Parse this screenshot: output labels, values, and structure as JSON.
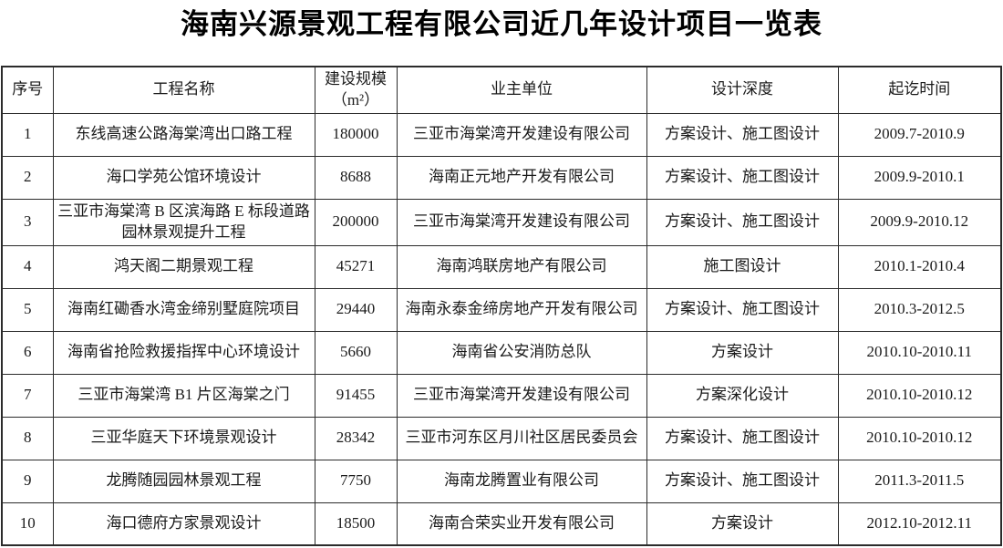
{
  "page": {
    "title": "海南兴源景观工程有限公司近几年设计项目一览表"
  },
  "colors": {
    "background": "#ffffff",
    "text": "#1a1a1a",
    "border": "#2b2b2b"
  },
  "table": {
    "headers": [
      "序号",
      "工程名称",
      "建设规模\n（m²）",
      "业主单位",
      "设计深度",
      "起讫时间"
    ],
    "rows": [
      [
        "1",
        "东线高速公路海棠湾出口路工程",
        "180000",
        "三亚市海棠湾开发建设有限公司",
        "方案设计、施工图设计",
        "2009.7-2010.9"
      ],
      [
        "2",
        "海口学苑公馆环境设计",
        "8688",
        "海南正元地产开发有限公司",
        "方案设计、施工图设计",
        "2009.9-2010.1"
      ],
      [
        "3",
        "三亚市海棠湾 B 区滨海路 E 标段道路园林景观提升工程",
        "200000",
        "三亚市海棠湾开发建设有限公司",
        "方案设计、施工图设计",
        "2009.9-2010.12"
      ],
      [
        "4",
        "鸿天阁二期景观工程",
        "45271",
        "海南鸿联房地产有限公司",
        "施工图设计",
        "2010.1-2010.4"
      ],
      [
        "5",
        "海南红磡香水湾金缔别墅庭院项目",
        "29440",
        "海南永泰金缔房地产开发有限公司",
        "方案设计、施工图设计",
        "2010.3-2012.5"
      ],
      [
        "6",
        "海南省抢险救援指挥中心环境设计",
        "5660",
        "海南省公安消防总队",
        "方案设计",
        "2010.10-2010.11"
      ],
      [
        "7",
        "三亚市海棠湾 B1 片区海棠之门",
        "91455",
        "三亚市海棠湾开发建设有限公司",
        "方案深化设计",
        "2010.10-2010.12"
      ],
      [
        "8",
        "三亚华庭天下环境景观设计",
        "28342",
        "三亚市河东区月川社区居民委员会",
        "方案设计、施工图设计",
        "2010.10-2010.12"
      ],
      [
        "9",
        "龙腾随园园林景观工程",
        "7750",
        "海南龙腾置业有限公司",
        "方案设计、施工图设计",
        "2011.3-2011.5"
      ],
      [
        "10",
        "海口德府方家景观设计",
        "18500",
        "海南合荣实业开发有限公司",
        "方案设计",
        "2012.10-2012.11"
      ]
    ]
  }
}
